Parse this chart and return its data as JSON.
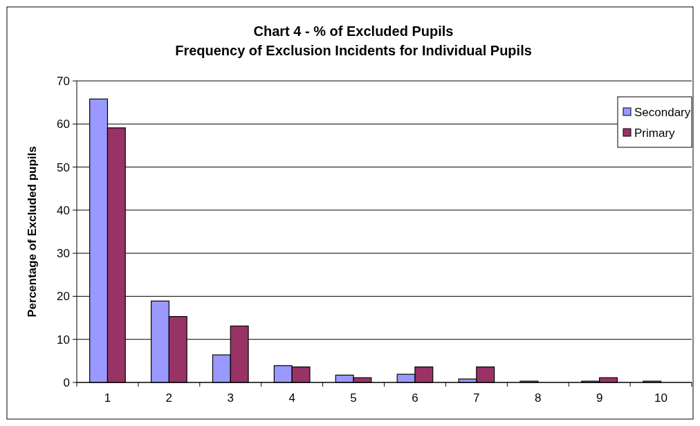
{
  "chart_data": {
    "type": "bar",
    "title": "Chart 4 - % of Excluded Pupils\nFrequency of Exclusion Incidents for Individual Pupils",
    "ylabel": "Percentage of Excluded pupils",
    "categories": [
      "1",
      "2",
      "3",
      "4",
      "5",
      "6",
      "7",
      "8",
      "9",
      "10"
    ],
    "series": [
      {
        "name": "Secondary",
        "color": "#9999ff",
        "values": [
          65.8,
          18.9,
          6.4,
          3.9,
          1.7,
          1.9,
          0.8,
          0.3,
          0.3,
          0.3
        ]
      },
      {
        "name": "Primary",
        "color": "#993366",
        "values": [
          59.1,
          15.3,
          13.1,
          3.6,
          1.1,
          3.6,
          3.6,
          0,
          1.1,
          0
        ]
      }
    ],
    "ylim": [
      0,
      70
    ],
    "yticks": [
      0,
      10,
      20,
      30,
      40,
      50,
      60,
      70
    ],
    "grid": "y",
    "legend": "top right"
  }
}
